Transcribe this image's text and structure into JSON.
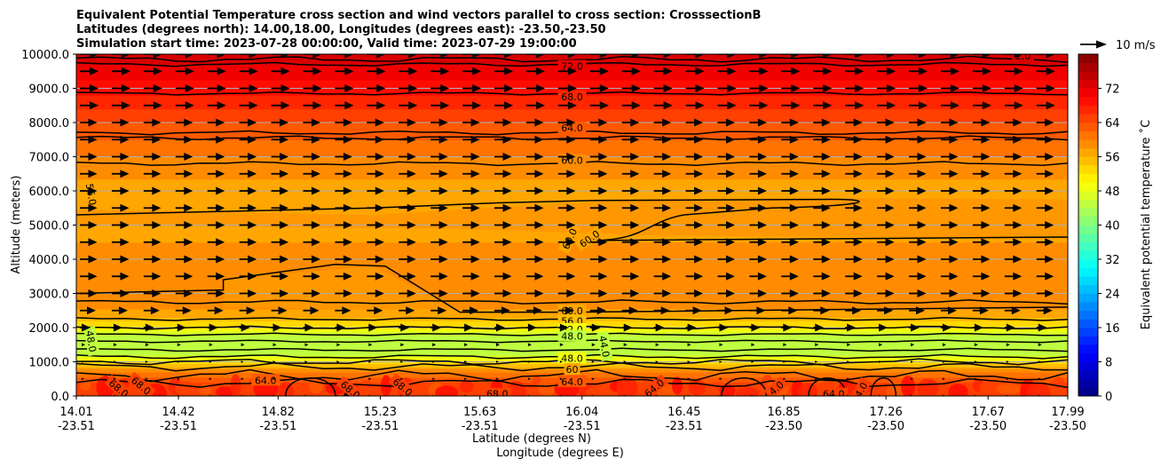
{
  "chart_data": {
    "type": "heatmap",
    "title_lines": [
      "Equivalent Potential Temperature cross section and wind vectors parallel to cross section: CrosssectionB",
      "Latitudes (degrees north): 14.00,18.00, Longitudes (degrees east): -23.50,-23.50",
      "Simulation start time: 2023-07-28 00:00:00, Valid time: 2023-07-29 19:00:00"
    ],
    "xlabel_lat": "Latitude (degrees N)",
    "xlabel_lon": "Longitude (degrees E)",
    "ylabel": "Altitude (meters)",
    "xlim": [
      14.01,
      17.99
    ],
    "ylim": [
      0,
      10000
    ],
    "x_ticks": [
      {
        "lat": "14.01",
        "lon": "-23.51"
      },
      {
        "lat": "14.42",
        "lon": "-23.51"
      },
      {
        "lat": "14.82",
        "lon": "-23.51"
      },
      {
        "lat": "15.23",
        "lon": "-23.51"
      },
      {
        "lat": "15.63",
        "lon": "-23.51"
      },
      {
        "lat": "16.04",
        "lon": "-23.51"
      },
      {
        "lat": "16.45",
        "lon": "-23.51"
      },
      {
        "lat": "16.85",
        "lon": "-23.50"
      },
      {
        "lat": "17.26",
        "lon": "-23.50"
      },
      {
        "lat": "17.67",
        "lon": "-23.50"
      },
      {
        "lat": "17.99",
        "lon": "-23.50"
      }
    ],
    "y_ticks": [
      "0.0",
      "1000.0",
      "2000.0",
      "3000.0",
      "4000.0",
      "5000.0",
      "6000.0",
      "7000.0",
      "8000.0",
      "9000.0",
      "10000.0"
    ],
    "y_tick_values": [
      0,
      1000,
      2000,
      3000,
      4000,
      5000,
      6000,
      7000,
      8000,
      9000,
      10000
    ],
    "grid": "horizontal",
    "colorbar": {
      "label": "Equivalent potential temperature ˚C",
      "range": [
        0,
        80
      ],
      "step": 2,
      "tick_values": [
        0,
        8,
        16,
        24,
        32,
        40,
        48,
        56,
        64,
        72
      ],
      "tick_labels": [
        "0",
        "8",
        "16",
        "24",
        "32",
        "40",
        "48",
        "56",
        "64",
        "72"
      ],
      "colormap": "jet"
    },
    "theta_e_profile": [
      {
        "z": 0,
        "v": 66
      },
      {
        "z": 300,
        "v": 65
      },
      {
        "z": 700,
        "v": 60
      },
      {
        "z": 1000,
        "v": 52
      },
      {
        "z": 1200,
        "v": 46
      },
      {
        "z": 1500,
        "v": 44
      },
      {
        "z": 1800,
        "v": 46
      },
      {
        "z": 2000,
        "v": 51
      },
      {
        "z": 2300,
        "v": 56
      },
      {
        "z": 2700,
        "v": 59
      },
      {
        "z": 3500,
        "v": 58.5
      },
      {
        "z": 4500,
        "v": 58
      },
      {
        "z": 5500,
        "v": 56.5
      },
      {
        "z": 6000,
        "v": 57
      },
      {
        "z": 7000,
        "v": 60
      },
      {
        "z": 8000,
        "v": 64
      },
      {
        "z": 8800,
        "v": 68
      },
      {
        "z": 9700,
        "v": 72
      },
      {
        "z": 10000,
        "v": 74
      }
    ],
    "contour_labels": [
      {
        "text": "72.0",
        "x": 16.0,
        "z": 9650
      },
      {
        "text": "68.0",
        "x": 16.0,
        "z": 8750
      },
      {
        "text": "64.0",
        "x": 16.0,
        "z": 7850
      },
      {
        "text": "60.0",
        "x": 16.0,
        "z": 6900
      },
      {
        "text": "56.0",
        "x": 14.07,
        "z": 5900,
        "rotate": 80
      },
      {
        "text": "60.0",
        "x": 15.99,
        "z": 4600,
        "rotate": -65
      },
      {
        "text": "60.0",
        "x": 16.07,
        "z": 4600,
        "rotate": -35
      },
      {
        "text": "60.0",
        "x": 16.0,
        "z": 2500
      },
      {
        "text": "56.0",
        "x": 16.0,
        "z": 2200
      },
      {
        "text": "52.0",
        "x": 16.0,
        "z": 1950
      },
      {
        "text": "48.0",
        "x": 16.0,
        "z": 1750
      },
      {
        "text": "48.0",
        "x": 14.07,
        "z": 1600,
        "rotate": 80
      },
      {
        "text": "44.0",
        "x": 16.13,
        "z": 1450,
        "rotate": 80
      },
      {
        "text": "48.0",
        "x": 16.0,
        "z": 1100
      },
      {
        "text": "60",
        "x": 16.0,
        "z": 780
      },
      {
        "text": "64.0",
        "x": 16.0,
        "z": 420
      },
      {
        "text": "64.0",
        "x": 14.77,
        "z": 460
      },
      {
        "text": "68.0",
        "x": 14.18,
        "z": 220,
        "rotate": 40
      },
      {
        "text": "68.0",
        "x": 14.27,
        "z": 300,
        "rotate": 40
      },
      {
        "text": "68.0",
        "x": 15.11,
        "z": 180,
        "rotate": 40
      },
      {
        "text": "68.0",
        "x": 15.32,
        "z": 260,
        "rotate": 40
      },
      {
        "text": "68.0",
        "x": 15.7,
        "z": 60
      },
      {
        "text": "64.0",
        "x": 16.33,
        "z": 230,
        "rotate": -40
      },
      {
        "text": "4.0",
        "x": 16.82,
        "z": 230,
        "rotate": -40
      },
      {
        "text": "64.0",
        "x": 17.05,
        "z": 60
      },
      {
        "text": "4.0",
        "x": 17.16,
        "z": 180,
        "rotate": -60
      },
      {
        "text": "2.0",
        "x": 17.81,
        "z": 9950
      }
    ],
    "wind_key": {
      "label": "10 m/s",
      "speed": 10
    },
    "wind_rows": [
      {
        "z": 10000,
        "speed": 7
      },
      {
        "z": 9500,
        "speed": 7
      },
      {
        "z": 9000,
        "speed": 7
      },
      {
        "z": 8500,
        "speed": 7
      },
      {
        "z": 8000,
        "speed": 6.5
      },
      {
        "z": 7500,
        "speed": 6.5
      },
      {
        "z": 7000,
        "speed": 6.5
      },
      {
        "z": 6500,
        "speed": 6.5
      },
      {
        "z": 6000,
        "speed": 6.5
      },
      {
        "z": 5500,
        "speed": 6.5
      },
      {
        "z": 5000,
        "speed": 6.5
      },
      {
        "z": 4500,
        "speed": 6.5
      },
      {
        "z": 4000,
        "speed": 6.5
      },
      {
        "z": 3500,
        "speed": 6.5
      },
      {
        "z": 3000,
        "speed": 6.5
      },
      {
        "z": 2500,
        "speed": 6
      },
      {
        "z": 2000,
        "speed": 4
      },
      {
        "z": 1500,
        "speed": 1.5
      },
      {
        "z": 1000,
        "speed": 1
      },
      {
        "z": 500,
        "speed": 1
      },
      {
        "z": 0,
        "speed": 1
      }
    ],
    "wind_direction": "left-to-right (parallel to cross section)"
  }
}
